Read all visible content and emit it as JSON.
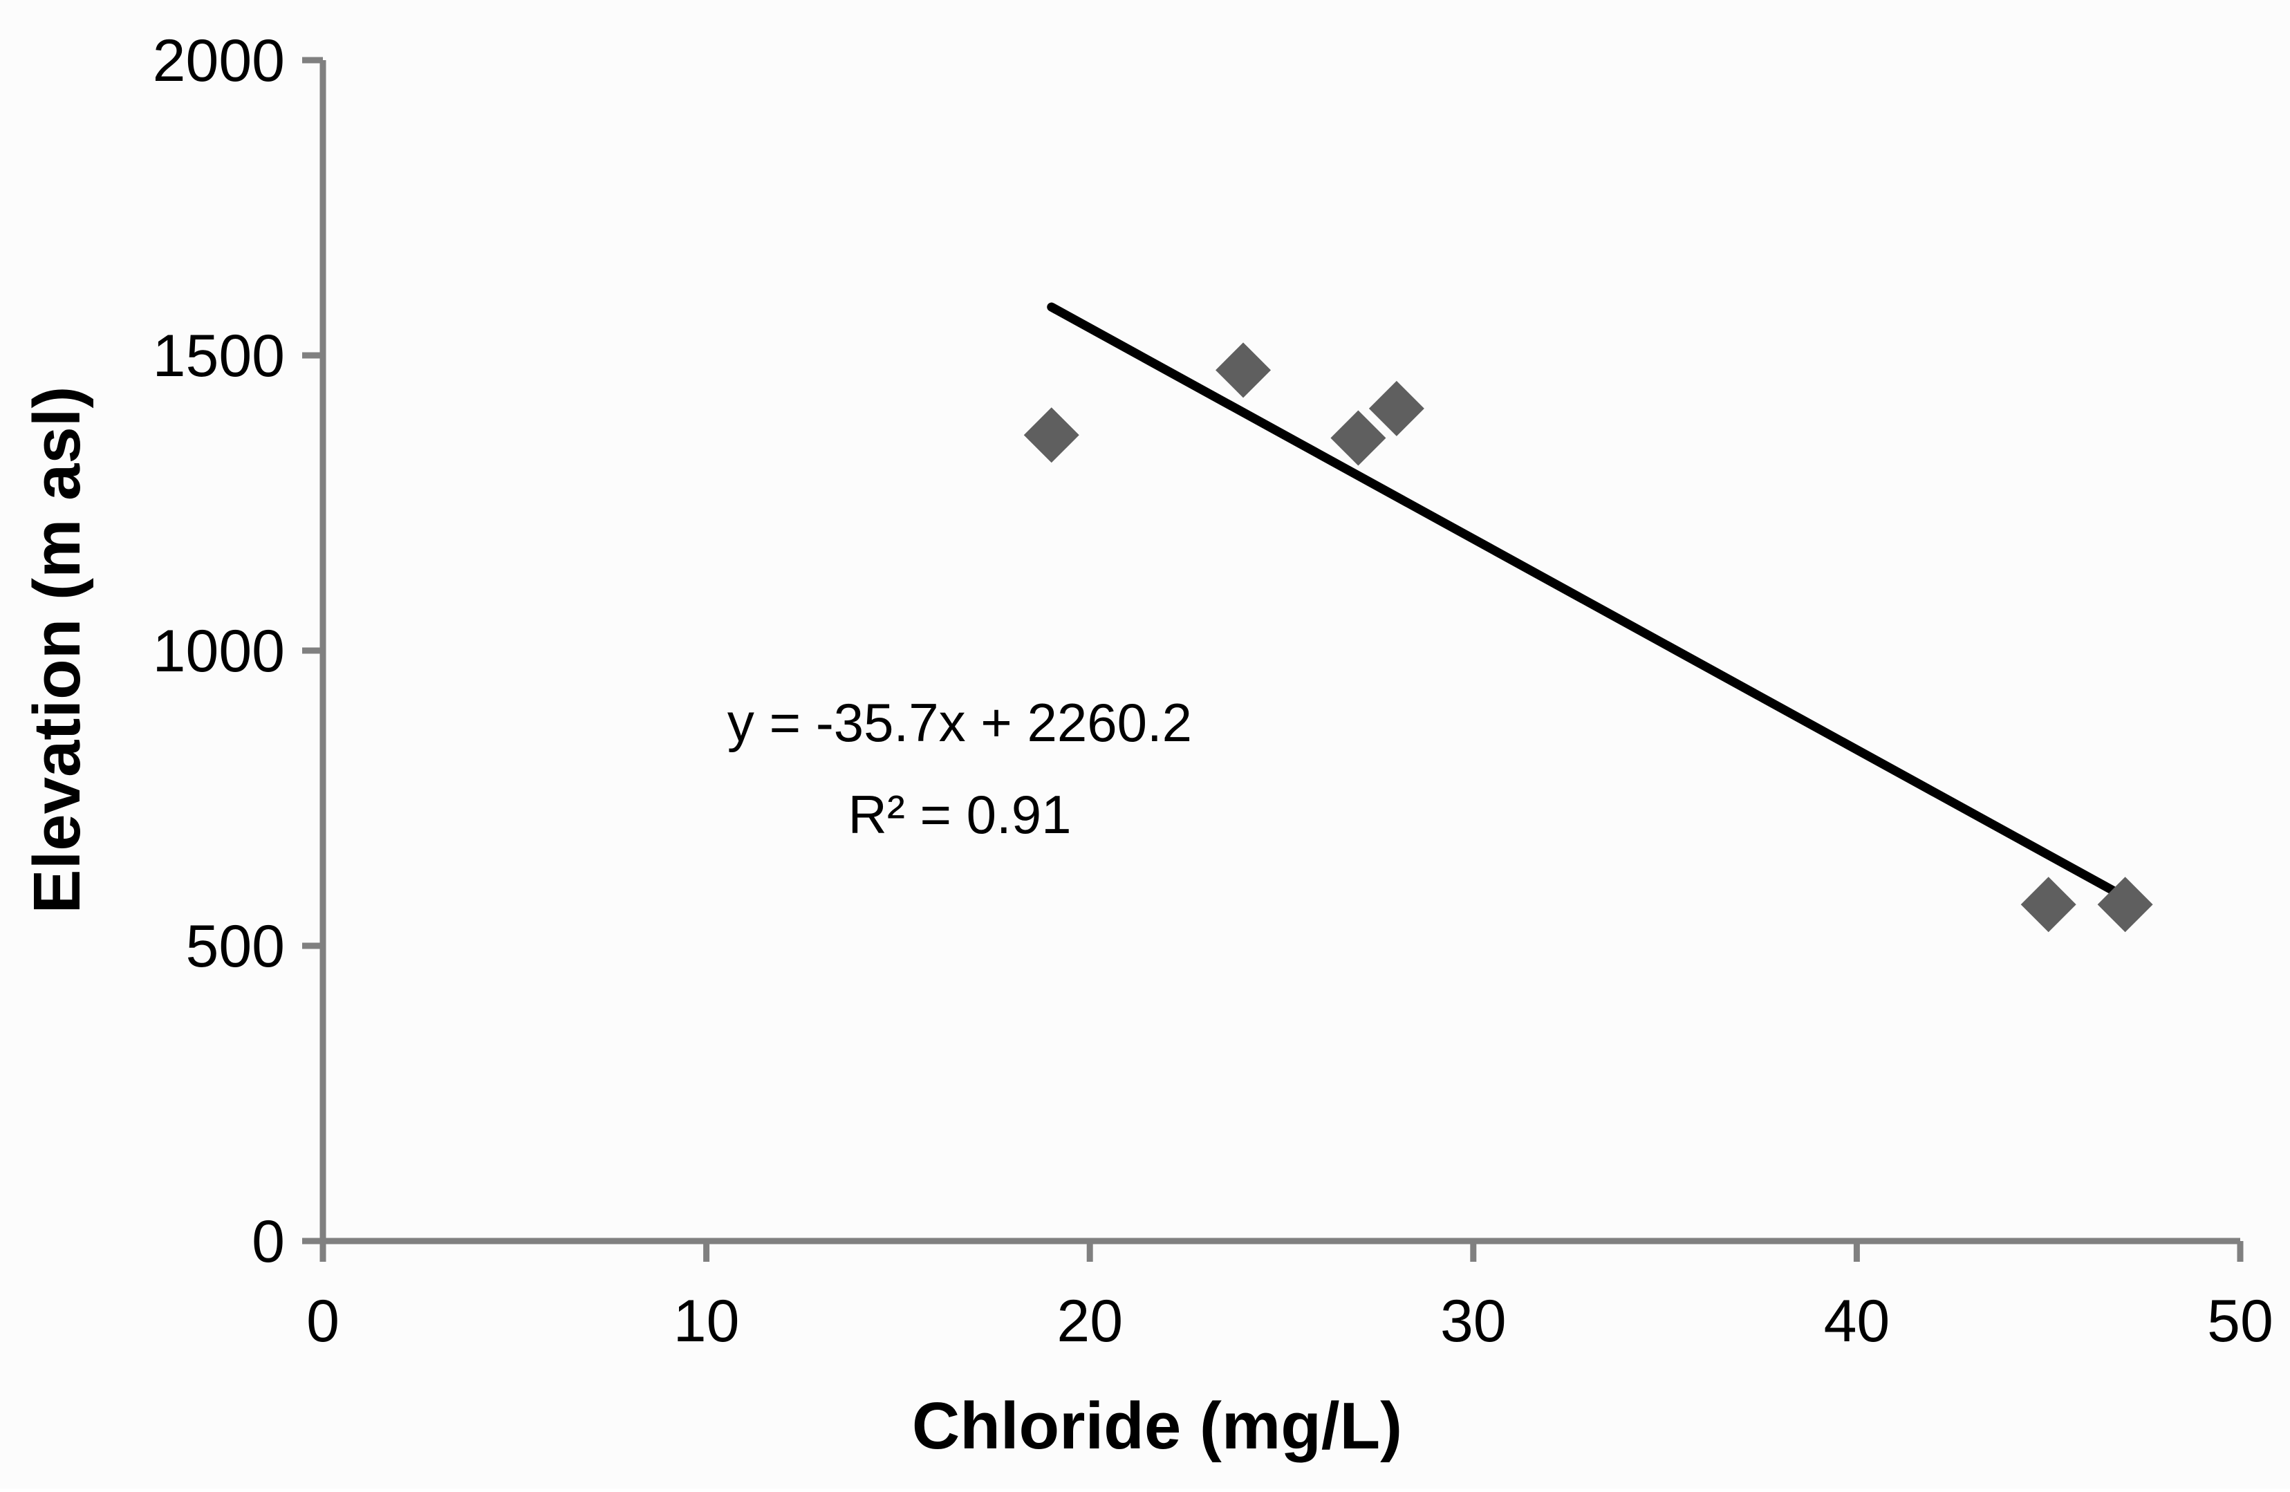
{
  "chart_data": {
    "type": "scatter",
    "title": "",
    "xlabel": "Chloride (mg/L)",
    "ylabel": "Elevation (m asl)",
    "xlim": [
      0,
      50
    ],
    "ylim": [
      0,
      2000
    ],
    "x_ticks": [
      0,
      10,
      20,
      30,
      40,
      50
    ],
    "y_ticks": [
      0,
      500,
      1000,
      1500,
      2000
    ],
    "x_tick_labels": [
      "0",
      "10",
      "20",
      "30",
      "40",
      "50"
    ],
    "y_tick_labels": [
      "0",
      "500",
      "1000",
      "1500",
      "2000"
    ],
    "grid": false,
    "legend": "none",
    "marker": "diamond",
    "colors": {
      "points": "#5f5f5f",
      "trendline": "#000000",
      "axis": "#808080"
    },
    "series": [
      {
        "x": [
          19,
          24,
          27,
          28,
          45,
          47
        ],
        "y": [
          1365,
          1475,
          1360,
          1410,
          570,
          570
        ]
      }
    ],
    "trendline": {
      "slope": -35.7,
      "intercept": 2260.2,
      "x_range": [
        19,
        47
      ]
    },
    "annotations": [
      "y = -35.7x + 2260.2",
      "R² = 0.91"
    ]
  }
}
